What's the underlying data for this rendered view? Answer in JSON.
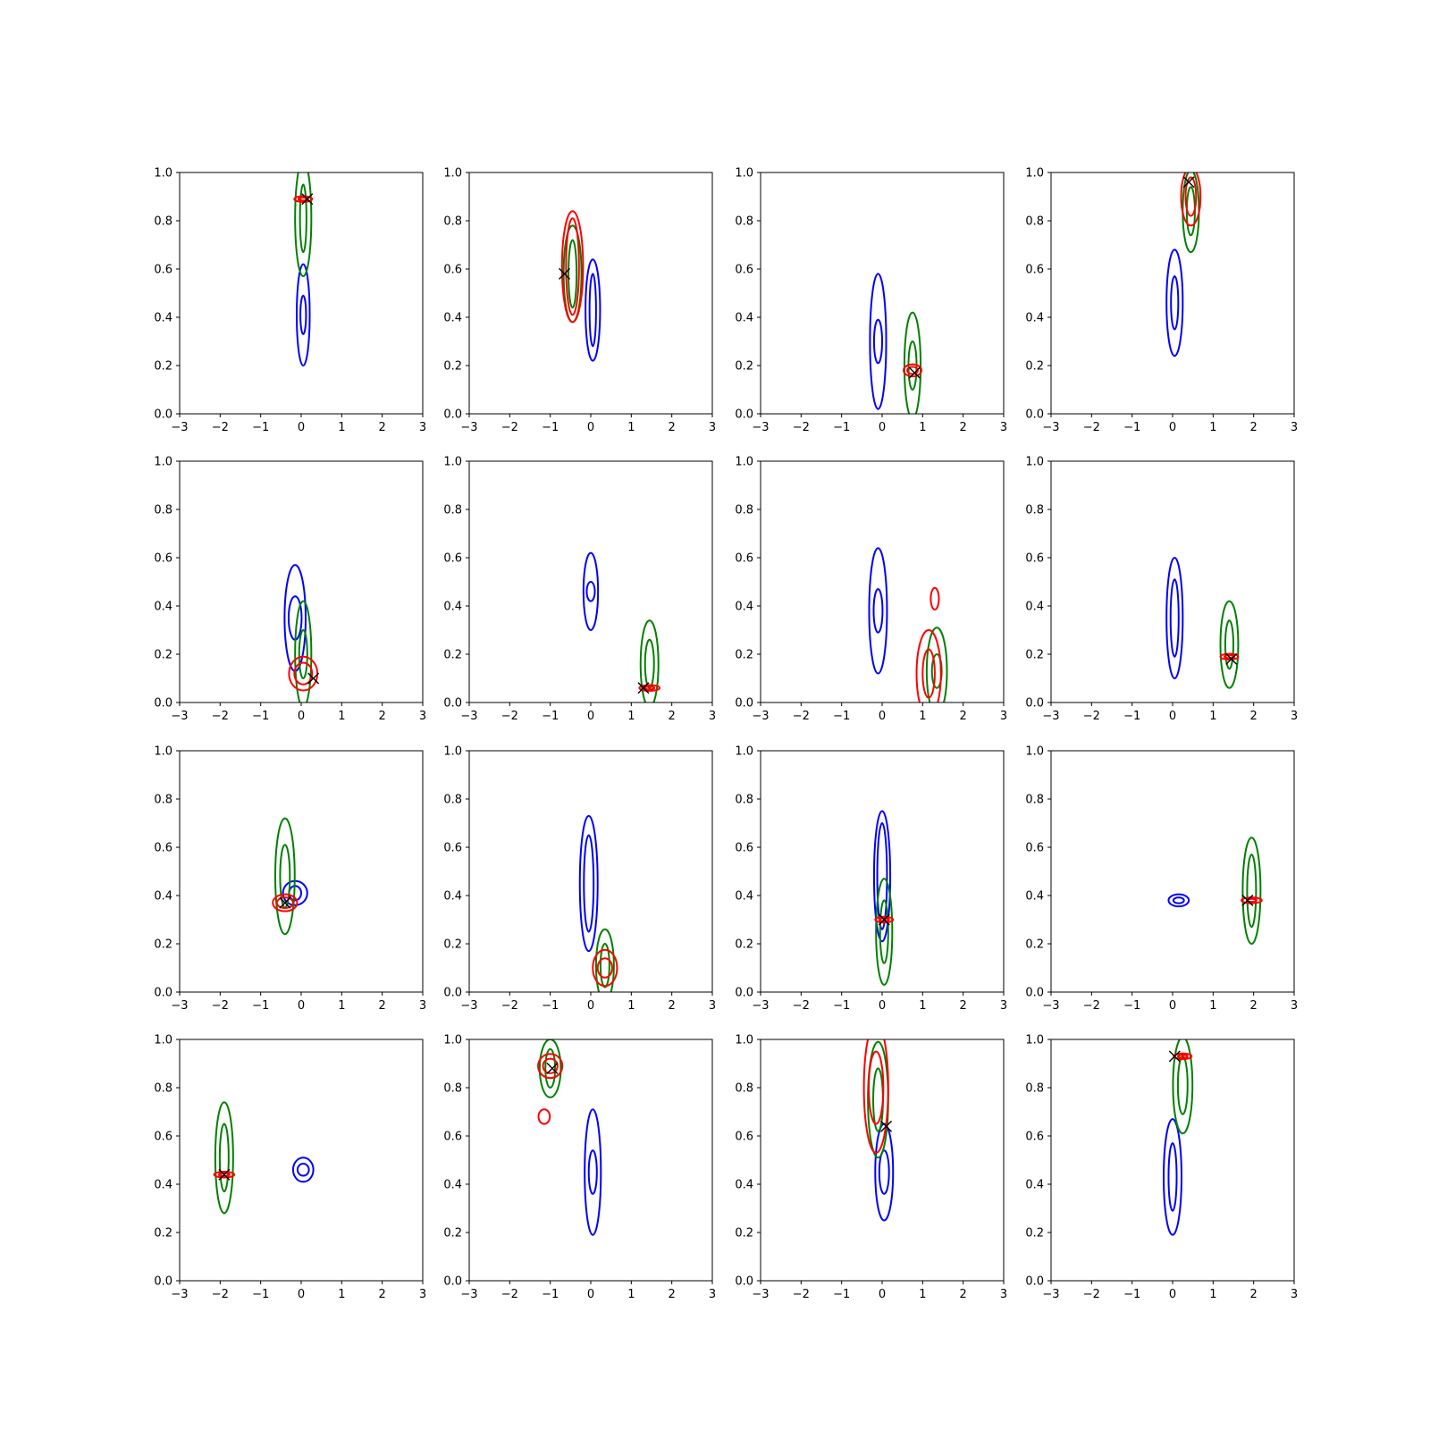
{
  "chart_data": {
    "type": "contour",
    "grid": {
      "rows": 4,
      "cols": 4
    },
    "xlim": [
      -3,
      3
    ],
    "ylim": [
      0,
      1
    ],
    "xticks": [
      "−3",
      "−2",
      "−1",
      "0",
      "1",
      "2",
      "3"
    ],
    "yticks": [
      "0.0",
      "0.2",
      "0.4",
      "0.6",
      "0.8",
      "1.0"
    ],
    "xtick_values": [
      -3,
      -2,
      -1,
      0,
      1,
      2,
      3
    ],
    "ytick_values": [
      0,
      0.2,
      0.4,
      0.6,
      0.8,
      1.0
    ],
    "colors": {
      "blue": "#0000ff",
      "green": "#008000",
      "red": "#ff0000",
      "marker": "#000000"
    },
    "panels": [
      {
        "truth": [
          0.15,
          0.89
        ],
        "contours": [
          {
            "color": "blue",
            "x": 0.05,
            "y": 0.41,
            "rx": [
              0.16,
              0.07
            ],
            "ry": [
              0.21,
              0.08
            ]
          },
          {
            "color": "green",
            "x": 0.05,
            "y": 0.81,
            "rx": [
              0.2,
              0.08
            ],
            "ry": [
              0.24,
              0.14
            ]
          },
          {
            "color": "red",
            "x": 0.05,
            "y": 0.89,
            "rx": [
              0.22,
              0.12
            ],
            "ry": [
              0.012,
              0.006
            ]
          }
        ]
      },
      {
        "truth": [
          -0.65,
          0.58
        ],
        "contours": [
          {
            "color": "blue",
            "x": 0.05,
            "y": 0.43,
            "rx": [
              0.18,
              0.08
            ],
            "ry": [
              0.21,
              0.15
            ]
          },
          {
            "color": "green",
            "x": -0.45,
            "y": 0.58,
            "rx": [
              0.22,
              0.1
            ],
            "ry": [
              0.2,
              0.14
            ]
          },
          {
            "color": "red",
            "x": -0.45,
            "y": 0.61,
            "rx": [
              0.26,
              0.16
            ],
            "ry": [
              0.23,
              0.2
            ]
          }
        ]
      },
      {
        "truth": [
          0.8,
          0.17
        ],
        "contours": [
          {
            "color": "blue",
            "x": -0.1,
            "y": 0.3,
            "rx": [
              0.2,
              0.1
            ],
            "ry": [
              0.28,
              0.09
            ]
          },
          {
            "color": "green",
            "x": 0.75,
            "y": 0.2,
            "rx": [
              0.2,
              0.1
            ],
            "ry": [
              0.22,
              0.1
            ]
          },
          {
            "color": "red",
            "x": 0.75,
            "y": 0.18,
            "rx": [
              0.22,
              0.13
            ],
            "ry": [
              0.025,
              0.015
            ]
          }
        ]
      },
      {
        "truth": [
          0.4,
          0.96
        ],
        "contours": [
          {
            "color": "blue",
            "x": 0.05,
            "y": 0.46,
            "rx": [
              0.2,
              0.09
            ],
            "ry": [
              0.22,
              0.11
            ]
          },
          {
            "color": "green",
            "x": 0.45,
            "y": 0.84,
            "rx": [
              0.2,
              0.1
            ],
            "ry": [
              0.17,
              0.1
            ]
          },
          {
            "color": "red",
            "x": 0.45,
            "y": 0.9,
            "rx": [
              0.24,
              0.13
            ],
            "ry": [
              0.12,
              0.08
            ]
          }
        ]
      },
      {
        "truth": [
          0.3,
          0.1
        ],
        "contours": [
          {
            "color": "blue",
            "x": -0.15,
            "y": 0.35,
            "rx": [
              0.26,
              0.16
            ],
            "ry": [
              0.22,
              0.09
            ]
          },
          {
            "color": "green",
            "x": 0.05,
            "y": 0.2,
            "rx": [
              0.2,
              0.1
            ],
            "ry": [
              0.22,
              0.1
            ]
          },
          {
            "color": "red",
            "x": 0.05,
            "y": 0.12,
            "rx": [
              0.35,
              0.22
            ],
            "ry": [
              0.07,
              0.045
            ]
          }
        ]
      },
      {
        "truth": [
          1.3,
          0.06
        ],
        "contours": [
          {
            "color": "blue",
            "x": 0.0,
            "y": 0.46,
            "rx": [
              0.18,
              0.1
            ],
            "ry": [
              0.16,
              0.04
            ]
          },
          {
            "color": "green",
            "x": 1.45,
            "y": 0.16,
            "rx": [
              0.22,
              0.11
            ],
            "ry": [
              0.18,
              0.1
            ]
          },
          {
            "color": "red",
            "x": 1.45,
            "y": 0.06,
            "rx": [
              0.25,
              0.12
            ],
            "ry": [
              0.012,
              0.006
            ]
          }
        ]
      },
      {
        "truth": null,
        "contours": [
          {
            "color": "blue",
            "x": -0.1,
            "y": 0.38,
            "rx": [
              0.22,
              0.11
            ],
            "ry": [
              0.26,
              0.09
            ]
          },
          {
            "color": "green",
            "x": 1.35,
            "y": 0.13,
            "rx": [
              0.25,
              0.12
            ],
            "ry": [
              0.18,
              0.07
            ]
          },
          {
            "color": "red",
            "x": 1.15,
            "y": 0.12,
            "rx": [
              0.3,
              0.15
            ],
            "ry": [
              0.18,
              0.1
            ]
          },
          {
            "color": "red",
            "x": 1.3,
            "y": 0.43,
            "rx": [
              0.1,
              0.0
            ],
            "ry": [
              0.045,
              0.0
            ]
          }
        ]
      },
      {
        "truth": [
          1.45,
          0.18
        ],
        "contours": [
          {
            "color": "blue",
            "x": 0.05,
            "y": 0.35,
            "rx": [
              0.2,
              0.1
            ],
            "ry": [
              0.25,
              0.16
            ]
          },
          {
            "color": "green",
            "x": 1.4,
            "y": 0.24,
            "rx": [
              0.22,
              0.1
            ],
            "ry": [
              0.18,
              0.1
            ]
          },
          {
            "color": "red",
            "x": 1.4,
            "y": 0.19,
            "rx": [
              0.22,
              0.12
            ],
            "ry": [
              0.012,
              0.006
            ]
          }
        ]
      },
      {
        "truth": [
          -0.4,
          0.37
        ],
        "contours": [
          {
            "color": "blue",
            "x": -0.15,
            "y": 0.41,
            "rx": [
              0.3,
              0.15
            ],
            "ry": [
              0.05,
              0.03
            ]
          },
          {
            "color": "green",
            "x": -0.4,
            "y": 0.48,
            "rx": [
              0.24,
              0.12
            ],
            "ry": [
              0.24,
              0.13
            ]
          },
          {
            "color": "red",
            "x": -0.4,
            "y": 0.37,
            "rx": [
              0.3,
              0.2
            ],
            "ry": [
              0.035,
              0.022
            ]
          }
        ]
      },
      {
        "truth": null,
        "contours": [
          {
            "color": "blue",
            "x": -0.05,
            "y": 0.45,
            "rx": [
              0.22,
              0.12
            ],
            "ry": [
              0.28,
              0.2
            ]
          },
          {
            "color": "green",
            "x": 0.35,
            "y": 0.11,
            "rx": [
              0.22,
              0.11
            ],
            "ry": [
              0.15,
              0.09
            ]
          },
          {
            "color": "red",
            "x": 0.35,
            "y": 0.1,
            "rx": [
              0.3,
              0.18
            ],
            "ry": [
              0.075,
              0.04
            ]
          }
        ]
      },
      {
        "truth": [
          0.05,
          0.3
        ],
        "contours": [
          {
            "color": "blue",
            "x": 0.0,
            "y": 0.48,
            "rx": [
              0.2,
              0.12
            ],
            "ry": [
              0.27,
              0.22
            ]
          },
          {
            "color": "green",
            "x": 0.05,
            "y": 0.25,
            "rx": [
              0.2,
              0.1
            ],
            "ry": [
              0.22,
              0.13
            ]
          },
          {
            "color": "red",
            "x": 0.05,
            "y": 0.3,
            "rx": [
              0.22,
              0.12
            ],
            "ry": [
              0.012,
              0.006
            ]
          }
        ]
      },
      {
        "truth": [
          1.85,
          0.38
        ],
        "contours": [
          {
            "color": "blue",
            "x": 0.15,
            "y": 0.38,
            "rx": [
              0.25,
              0.13
            ],
            "ry": [
              0.025,
              0.012
            ]
          },
          {
            "color": "green",
            "x": 1.95,
            "y": 0.42,
            "rx": [
              0.22,
              0.11
            ],
            "ry": [
              0.22,
              0.15
            ]
          },
          {
            "color": "red",
            "x": 1.95,
            "y": 0.38,
            "rx": [
              0.25,
              0.12
            ],
            "ry": [
              0.012,
              0.006
            ]
          }
        ]
      },
      {
        "truth": [
          -1.9,
          0.44
        ],
        "contours": [
          {
            "color": "blue",
            "x": 0.05,
            "y": 0.46,
            "rx": [
              0.25,
              0.14
            ],
            "ry": [
              0.05,
              0.025
            ]
          },
          {
            "color": "green",
            "x": -1.9,
            "y": 0.51,
            "rx": [
              0.22,
              0.11
            ],
            "ry": [
              0.23,
              0.14
            ]
          },
          {
            "color": "red",
            "x": -1.9,
            "y": 0.44,
            "rx": [
              0.25,
              0.13
            ],
            "ry": [
              0.012,
              0.006
            ]
          }
        ]
      },
      {
        "truth": [
          -0.95,
          0.88
        ],
        "contours": [
          {
            "color": "blue",
            "x": 0.05,
            "y": 0.45,
            "rx": [
              0.2,
              0.1
            ],
            "ry": [
              0.26,
              0.09
            ]
          },
          {
            "color": "green",
            "x": -1.0,
            "y": 0.88,
            "rx": [
              0.26,
              0.12
            ],
            "ry": [
              0.12,
              0.08
            ]
          },
          {
            "color": "red",
            "x": -1.0,
            "y": 0.89,
            "rx": [
              0.3,
              0.18
            ],
            "ry": [
              0.05,
              0.03
            ]
          },
          {
            "color": "red",
            "x": -1.15,
            "y": 0.68,
            "rx": [
              0.14,
              0.0
            ],
            "ry": [
              0.03,
              0.0
            ]
          }
        ]
      },
      {
        "truth": [
          0.1,
          0.64
        ],
        "contours": [
          {
            "color": "blue",
            "x": 0.05,
            "y": 0.45,
            "rx": [
              0.22,
              0.12
            ],
            "ry": [
              0.2,
              0.09
            ]
          },
          {
            "color": "green",
            "x": -0.1,
            "y": 0.75,
            "rx": [
              0.25,
              0.12
            ],
            "ry": [
              0.24,
              0.13
            ]
          },
          {
            "color": "red",
            "x": -0.15,
            "y": 0.8,
            "rx": [
              0.3,
              0.18
            ],
            "ry": [
              0.27,
              0.15
            ]
          }
        ]
      },
      {
        "truth": [
          0.05,
          0.93
        ],
        "contours": [
          {
            "color": "blue",
            "x": 0.0,
            "y": 0.43,
            "rx": [
              0.22,
              0.1
            ],
            "ry": [
              0.24,
              0.14
            ]
          },
          {
            "color": "green",
            "x": 0.25,
            "y": 0.81,
            "rx": [
              0.24,
              0.12
            ],
            "ry": [
              0.2,
              0.12
            ]
          },
          {
            "color": "red",
            "x": 0.25,
            "y": 0.93,
            "rx": [
              0.22,
              0.12
            ],
            "ry": [
              0.012,
              0.006
            ]
          }
        ]
      }
    ]
  }
}
